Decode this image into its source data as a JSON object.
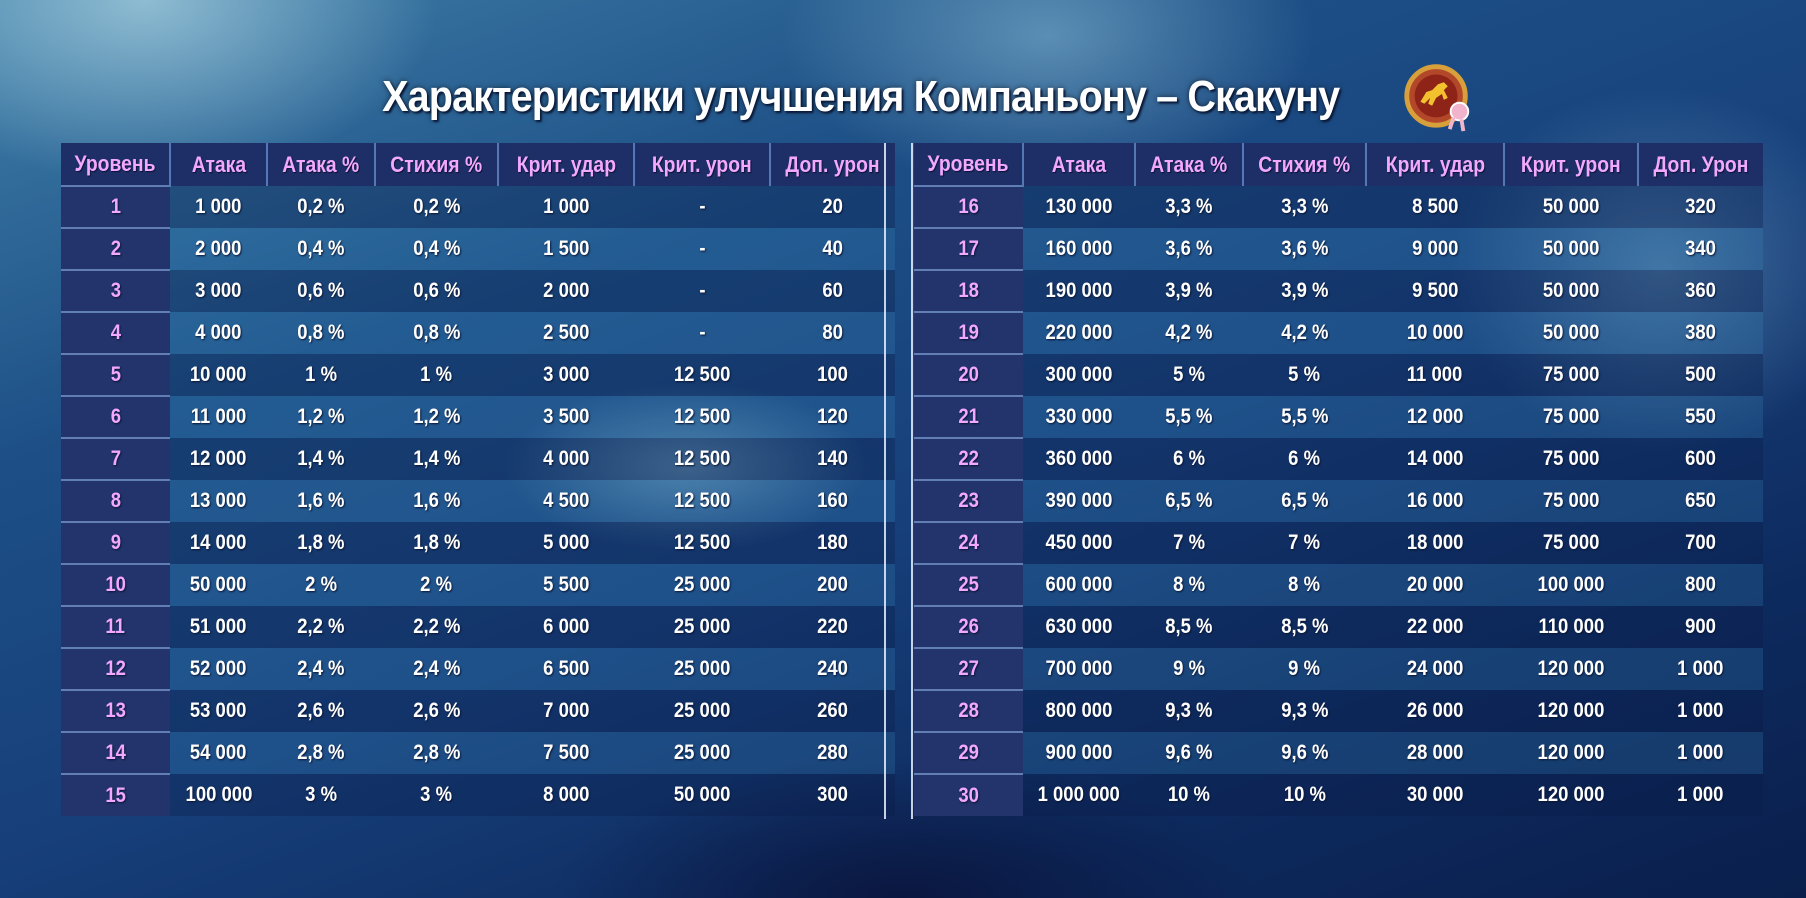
{
  "title": "Характеристики улучшения Компаньону – Скакуну",
  "emblem_icon": "horse-companion-emblem-icon",
  "left_table": {
    "headers": [
      "Уровень",
      "Атака",
      "Атака %",
      "Стихия %",
      "Крит. удар",
      "Крит. урон",
      "Доп. урон"
    ],
    "rows": [
      [
        "1",
        "1 000",
        "0,2 %",
        "0,2 %",
        "1 000",
        "-",
        "20"
      ],
      [
        "2",
        "2 000",
        "0,4 %",
        "0,4 %",
        "1 500",
        "-",
        "40"
      ],
      [
        "3",
        "3 000",
        "0,6 %",
        "0,6 %",
        "2 000",
        "-",
        "60"
      ],
      [
        "4",
        "4 000",
        "0,8 %",
        "0,8 %",
        "2 500",
        "-",
        "80"
      ],
      [
        "5",
        "10 000",
        "1 %",
        "1 %",
        "3 000",
        "12 500",
        "100"
      ],
      [
        "6",
        "11 000",
        "1,2 %",
        "1,2 %",
        "3 500",
        "12 500",
        "120"
      ],
      [
        "7",
        "12 000",
        "1,4 %",
        "1,4 %",
        "4 000",
        "12 500",
        "140"
      ],
      [
        "8",
        "13 000",
        "1,6 %",
        "1,6 %",
        "4 500",
        "12 500",
        "160"
      ],
      [
        "9",
        "14 000",
        "1,8 %",
        "1,8 %",
        "5 000",
        "12 500",
        "180"
      ],
      [
        "10",
        "50 000",
        "2 %",
        "2 %",
        "5 500",
        "25 000",
        "200"
      ],
      [
        "11",
        "51 000",
        "2,2 %",
        "2,2 %",
        "6 000",
        "25 000",
        "220"
      ],
      [
        "12",
        "52 000",
        "2,4 %",
        "2,4 %",
        "6 500",
        "25 000",
        "240"
      ],
      [
        "13",
        "53 000",
        "2,6 %",
        "2,6 %",
        "7 000",
        "25 000",
        "260"
      ],
      [
        "14",
        "54 000",
        "2,8 %",
        "2,8 %",
        "7 500",
        "25 000",
        "280"
      ],
      [
        "15",
        "100 000",
        "3 %",
        "3 %",
        "8 000",
        "50 000",
        "300"
      ]
    ]
  },
  "right_table": {
    "headers": [
      "Уровень",
      "Атака",
      "Атака %",
      "Стихия %",
      "Крит. удар",
      "Крит. урон",
      "Доп. Урон"
    ],
    "rows": [
      [
        "16",
        "130 000",
        "3,3 %",
        "3,3 %",
        "8 500",
        "50 000",
        "320"
      ],
      [
        "17",
        "160 000",
        "3,6 %",
        "3,6 %",
        "9 000",
        "50 000",
        "340"
      ],
      [
        "18",
        "190 000",
        "3,9 %",
        "3,9 %",
        "9 500",
        "50 000",
        "360"
      ],
      [
        "19",
        "220 000",
        "4,2 %",
        "4,2 %",
        "10 000",
        "50 000",
        "380"
      ],
      [
        "20",
        "300 000",
        "5 %",
        "5 %",
        "11 000",
        "75 000",
        "500"
      ],
      [
        "21",
        "330 000",
        "5,5 %",
        "5,5 %",
        "12 000",
        "75 000",
        "550"
      ],
      [
        "22",
        "360 000",
        "6 %",
        "6 %",
        "14 000",
        "75 000",
        "600"
      ],
      [
        "23",
        "390 000",
        "6,5 %",
        "6,5 %",
        "16 000",
        "75 000",
        "650"
      ],
      [
        "24",
        "450 000",
        "7 %",
        "7 %",
        "18 000",
        "75 000",
        "700"
      ],
      [
        "25",
        "600 000",
        "8 %",
        "8 %",
        "20 000",
        "100 000",
        "800"
      ],
      [
        "26",
        "630 000",
        "8,5 %",
        "8,5 %",
        "22 000",
        "110 000",
        "900"
      ],
      [
        "27",
        "700 000",
        "9 %",
        "9 %",
        "24 000",
        "120 000",
        "1 000"
      ],
      [
        "28",
        "800 000",
        "9,3 %",
        "9,3 %",
        "26 000",
        "120 000",
        "1 000"
      ],
      [
        "29",
        "900 000",
        "9,6 %",
        "9,6 %",
        "28 000",
        "120 000",
        "1 000"
      ],
      [
        "30",
        "1 000 000",
        "10 %",
        "10 %",
        "30 000",
        "120 000",
        "1 000"
      ]
    ]
  }
}
